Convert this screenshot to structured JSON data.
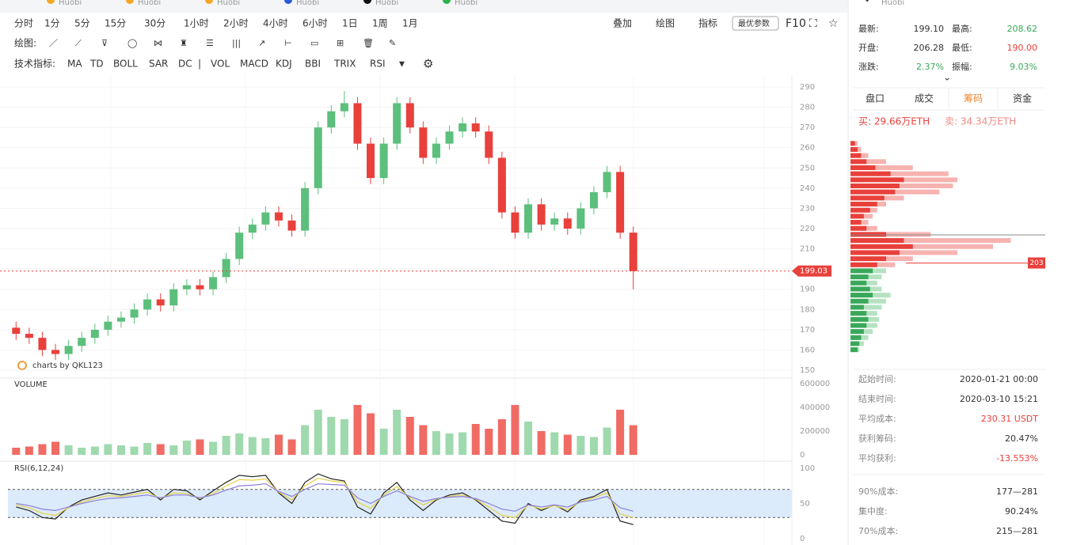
{
  "tabs": [
    "Huobi",
    "Huobi",
    "Huobi",
    "Huobi",
    "Huobi",
    "Huobi"
  ],
  "periods": [
    "分时",
    "1分",
    "5分",
    "15分",
    "30分",
    "1小时",
    "2小时",
    "4小时",
    "6小时",
    "1日",
    "1周",
    "1月"
  ],
  "active_period": 7,
  "draw_label": "绘图:",
  "indicator_label": "技术指标:",
  "indicators": [
    "MA",
    "TD",
    "BOLL",
    "SAR",
    "DC",
    "VOL",
    "MACD",
    "KDJ",
    "BBI",
    "TRIX",
    "RSI"
  ],
  "active_indicators": [
    5,
    10
  ],
  "tools": [
    "叠加",
    "绘图",
    "指标",
    "最优参数",
    "F10"
  ],
  "watermark": "charts by QKL123",
  "chart_data": [
    {
      "type": "candlestick",
      "up_color": "#5cbf7c",
      "down_color": "#e8403b",
      "open": [
        171,
        168,
        166,
        160,
        158,
        162,
        166,
        170,
        174,
        176,
        180,
        185,
        182,
        190,
        192,
        190,
        196,
        205,
        218,
        222,
        228,
        224,
        219,
        240,
        270,
        278,
        282,
        262,
        245,
        262,
        282,
        270,
        255,
        262,
        268,
        272,
        268,
        255,
        228,
        218,
        232,
        222,
        225,
        220,
        230,
        238,
        248,
        218
      ],
      "high": [
        174,
        171,
        169,
        163,
        165,
        169,
        173,
        177,
        179,
        183,
        188,
        188,
        193,
        195,
        195,
        199,
        208,
        221,
        225,
        231,
        231,
        227,
        243,
        273,
        281,
        288,
        285,
        265,
        265,
        285,
        285,
        273,
        265,
        271,
        275,
        275,
        271,
        258,
        231,
        235,
        235,
        228,
        228,
        233,
        241,
        251,
        251,
        221
      ],
      "low": [
        165,
        163,
        157,
        155,
        155,
        159,
        163,
        167,
        171,
        173,
        177,
        179,
        179,
        187,
        187,
        187,
        193,
        202,
        215,
        219,
        221,
        216,
        216,
        237,
        267,
        275,
        259,
        242,
        242,
        259,
        267,
        252,
        252,
        259,
        265,
        265,
        252,
        225,
        215,
        215,
        219,
        219,
        217,
        217,
        227,
        235,
        215,
        190
      ],
      "close": [
        168,
        166,
        160,
        158,
        162,
        166,
        170,
        174,
        176,
        180,
        185,
        182,
        190,
        192,
        190,
        196,
        205,
        218,
        222,
        228,
        224,
        219,
        240,
        270,
        278,
        282,
        262,
        245,
        262,
        282,
        270,
        255,
        262,
        268,
        272,
        268,
        255,
        228,
        218,
        232,
        222,
        225,
        220,
        230,
        238,
        248,
        218,
        199
      ],
      "ylim": [
        150,
        290
      ],
      "yticks": [
        150,
        160,
        170,
        180,
        190,
        200,
        210,
        220,
        230,
        240,
        250,
        260,
        270,
        280,
        290
      ],
      "last_price": 199.03,
      "last_color": "#e8403b",
      "grid": true
    },
    {
      "type": "bar",
      "title": "VOLUME",
      "values": [
        60000,
        70000,
        90000,
        110000,
        80000,
        60000,
        70000,
        90000,
        80000,
        70000,
        100000,
        90000,
        80000,
        120000,
        130000,
        110000,
        160000,
        180000,
        150000,
        140000,
        170000,
        130000,
        250000,
        380000,
        320000,
        300000,
        420000,
        350000,
        220000,
        380000,
        320000,
        250000,
        200000,
        180000,
        190000,
        260000,
        220000,
        300000,
        420000,
        280000,
        200000,
        190000,
        170000,
        160000,
        150000,
        230000,
        380000,
        250000
      ],
      "ylim": [
        0,
        600000
      ],
      "yticks": [
        0,
        200000,
        400000,
        600000
      ]
    },
    {
      "type": "line",
      "title": "RSI(6,12,24)",
      "band": [
        30,
        70
      ],
      "band_color": "#dcebfb",
      "series": [
        {
          "color": "#222222",
          "values": [
            45,
            40,
            30,
            28,
            45,
            55,
            60,
            65,
            62,
            66,
            70,
            55,
            70,
            68,
            55,
            68,
            80,
            90,
            88,
            90,
            65,
            50,
            80,
            92,
            85,
            82,
            45,
            35,
            65,
            80,
            55,
            40,
            55,
            62,
            65,
            55,
            40,
            25,
            22,
            50,
            40,
            48,
            38,
            55,
            60,
            70,
            25,
            20
          ]
        },
        {
          "color": "#e6cf45",
          "values": [
            48,
            44,
            36,
            33,
            44,
            52,
            57,
            61,
            60,
            63,
            66,
            57,
            65,
            64,
            57,
            64,
            75,
            84,
            83,
            85,
            66,
            55,
            75,
            86,
            82,
            80,
            52,
            43,
            62,
            74,
            58,
            48,
            56,
            60,
            62,
            56,
            45,
            33,
            30,
            48,
            42,
            47,
            41,
            53,
            58,
            65,
            35,
            30
          ]
        },
        {
          "color": "#8b7fd9",
          "values": [
            50,
            47,
            42,
            40,
            45,
            50,
            54,
            57,
            58,
            60,
            62,
            58,
            62,
            62,
            58,
            62,
            69,
            75,
            76,
            78,
            67,
            60,
            70,
            78,
            77,
            76,
            58,
            50,
            60,
            68,
            60,
            53,
            57,
            59,
            60,
            57,
            50,
            42,
            39,
            48,
            45,
            48,
            45,
            52,
            55,
            60,
            44,
            39
          ]
        }
      ],
      "ylim": [
        0,
        100
      ],
      "yticks": [
        0,
        50,
        100
      ]
    }
  ],
  "quote": [
    {
      "label": "最新:",
      "value": "199.10",
      "color": "#333333"
    },
    {
      "label": "最高:",
      "value": "208.62",
      "color": "#3aa85a"
    },
    {
      "label": "开盘:",
      "value": "206.28",
      "color": "#333333"
    },
    {
      "label": "最低:",
      "value": "190.00",
      "color": "#e8403b"
    },
    {
      "label": "涨跌:",
      "value": "2.37%",
      "color": "#3aa85a"
    },
    {
      "label": "振幅:",
      "value": "9.03%",
      "color": "#3aa85a"
    }
  ],
  "panel_tabs": [
    "盘口",
    "成交",
    "筹码",
    "资金"
  ],
  "active_tab": 2,
  "buy": "买: 29.66万ETH",
  "sell": "卖: 34.34万ETH",
  "chips": {
    "prices": [
      262,
      259,
      256,
      253,
      250,
      247,
      244,
      241,
      238,
      235,
      232,
      229,
      226,
      223,
      220,
      217,
      214,
      211,
      208,
      205,
      202,
      199,
      196,
      193,
      190,
      187,
      184,
      181,
      178,
      175,
      172,
      169,
      166,
      163,
      160
    ],
    "values": [
      5,
      8,
      12,
      18,
      28,
      45,
      60,
      55,
      50,
      38,
      30,
      22,
      15,
      12,
      18,
      40,
      60,
      70,
      55,
      40,
      30,
      25,
      20,
      18,
      22,
      25,
      20,
      15,
      18,
      20,
      18,
      15,
      12,
      10,
      8
    ],
    "totals": [
      8,
      12,
      20,
      40,
      70,
      110,
      120,
      115,
      100,
      60,
      40,
      30,
      25,
      20,
      30,
      90,
      180,
      160,
      120,
      70,
      50,
      40,
      35,
      30,
      35,
      45,
      40,
      35,
      30,
      32,
      30,
      25,
      20,
      15,
      10
    ],
    "xlim": [
      0,
      200
    ],
    "marker": 203
  },
  "stats": [
    {
      "label": "起始时间:",
      "value": "2020-01-21 00:00",
      "color": "#333333"
    },
    {
      "label": "结束时间:",
      "value": "2020-03-10 15:21",
      "color": "#333333"
    },
    {
      "label": "平均成本:",
      "value": "230.31 USDT",
      "color": "#e8403b"
    },
    {
      "label": "获利筹码:",
      "value": "20.47%",
      "color": "#333333"
    },
    {
      "label": "平均获利:",
      "value": "-13.553%",
      "color": "#e8403b"
    },
    {
      "label": "90%成本:",
      "value": "177—281",
      "color": "#333333"
    },
    {
      "label": "集中度:",
      "value": "90.24%",
      "color": "#333333"
    },
    {
      "label": "70%成本:",
      "value": "215—281",
      "color": "#333333"
    }
  ]
}
